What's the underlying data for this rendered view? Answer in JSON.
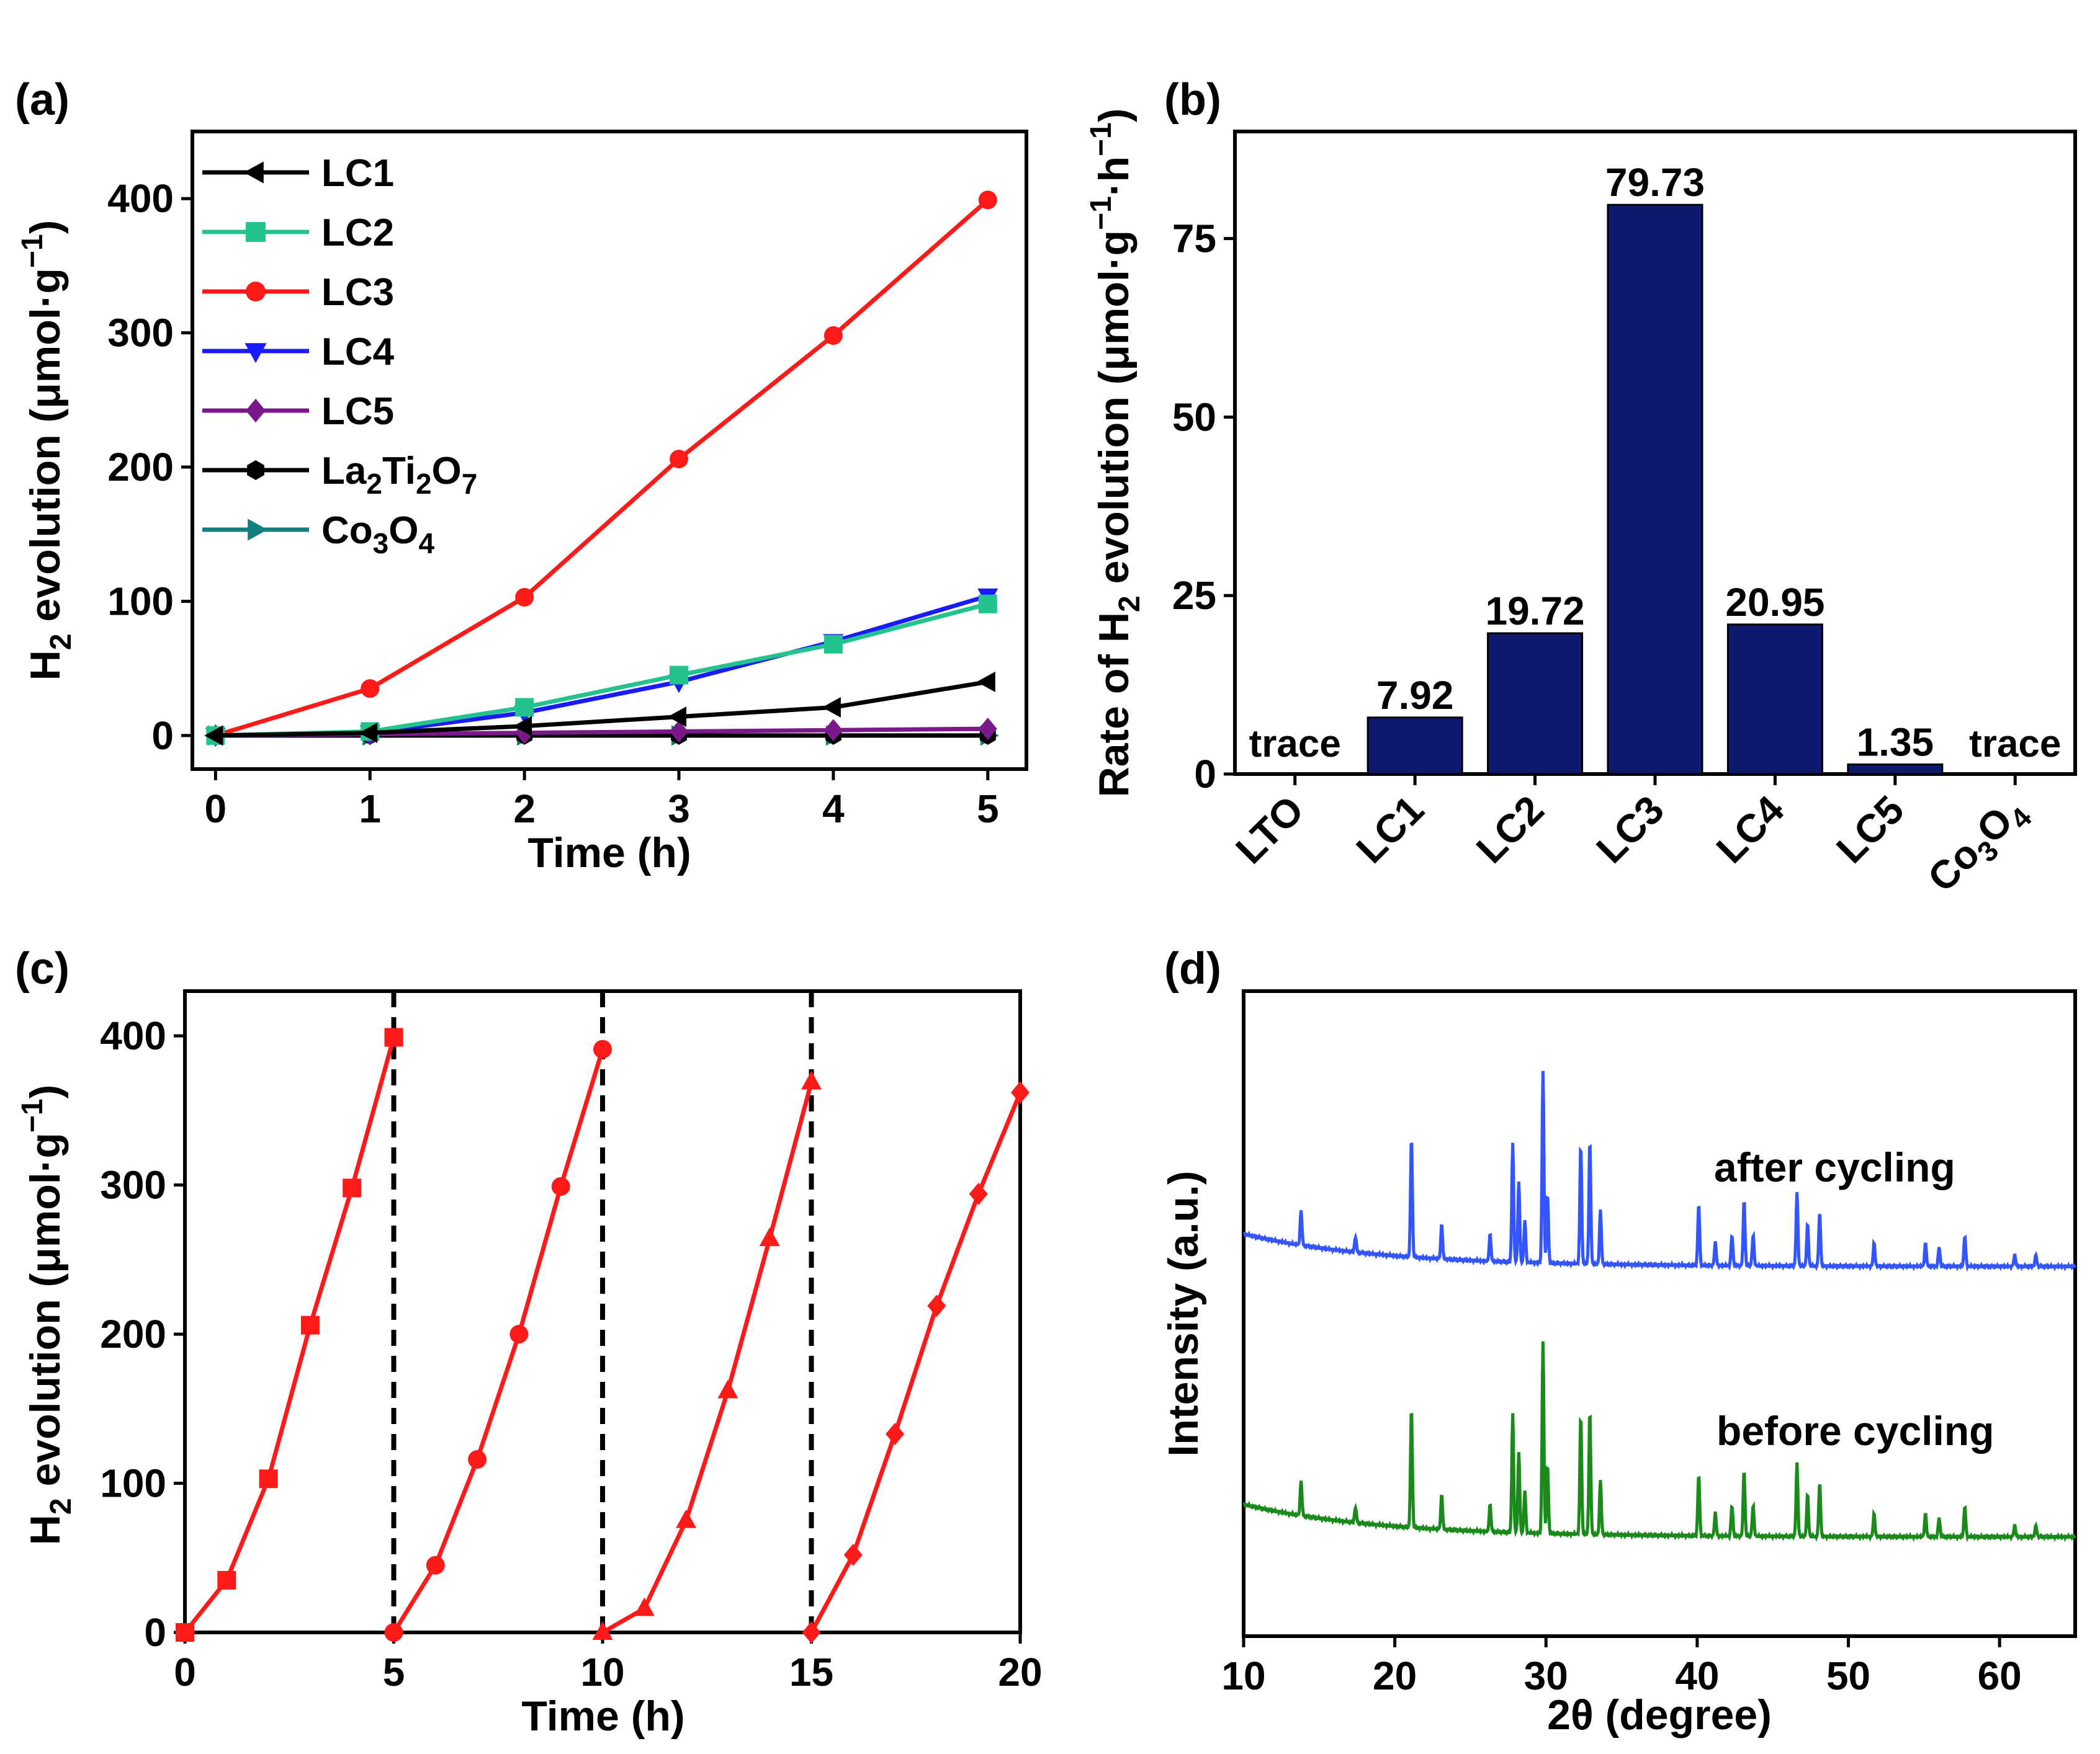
{
  "colors": {
    "LC1": "#000000",
    "LC2": "#22c38e",
    "LC3": "#ff1a1a",
    "LC4": "#1a1aff",
    "LC5": "#7a1a8a",
    "La2Ti2O7": "#000000",
    "Co3O4": "#0f7f7f",
    "bar": "#0d1a6e",
    "cycle": "#ff1a1a",
    "after": "#3355ff",
    "before": "#1a8a1a"
  },
  "chart_data": [
    {
      "type": "line",
      "panel": "(a)",
      "xlabel": "Time (h)",
      "ylabel": {
        "pre": "H",
        "sub": "2",
        "post": " evolution (μmol·g",
        "sup": "−1",
        "end": ")"
      },
      "xlim": [
        -0.15,
        5.25
      ],
      "ylim": [
        -25,
        450
      ],
      "xticks": [
        0,
        1,
        2,
        3,
        4,
        5
      ],
      "yticks": [
        0,
        100,
        200,
        300,
        400
      ],
      "x": [
        0,
        1,
        2,
        3,
        4,
        5
      ],
      "legend_position": "top-left",
      "series": [
        {
          "name": "LC1",
          "label": "LC1",
          "marker": "triangle-left",
          "values": [
            0,
            2,
            7,
            14,
            21,
            40
          ]
        },
        {
          "name": "LC2",
          "label": "LC2",
          "marker": "square",
          "values": [
            0,
            3,
            21,
            45,
            68,
            98
          ]
        },
        {
          "name": "LC3",
          "label": "LC3",
          "marker": "circle",
          "values": [
            0,
            35,
            103,
            206,
            298,
            399
          ]
        },
        {
          "name": "LC4",
          "label": "LC4",
          "marker": "triangle-down",
          "values": [
            0,
            2,
            17,
            40,
            70,
            104
          ]
        },
        {
          "name": "LC5",
          "label": "LC5",
          "marker": "diamond",
          "values": [
            0,
            1,
            2,
            3,
            4,
            5
          ]
        },
        {
          "name": "La2Ti2O7",
          "label": {
            "parts": [
              "La",
              "2",
              "Ti",
              "2",
              "O",
              "7"
            ]
          },
          "marker": "hexagon",
          "values": [
            0,
            0,
            0,
            0,
            0,
            0
          ]
        },
        {
          "name": "Co3O4",
          "label": {
            "parts": [
              "Co",
              "3",
              "O",
              "4"
            ]
          },
          "marker": "triangle-right",
          "values": [
            0,
            0,
            0,
            0,
            0,
            0
          ]
        }
      ]
    },
    {
      "type": "bar",
      "panel": "(b)",
      "categories": [
        "LTO",
        "LC1",
        "LC2",
        "LC3",
        "LC4",
        "LC5",
        "Co3O4"
      ],
      "category_labels": [
        "LTO",
        "LC1",
        "LC2",
        "LC3",
        "LC4",
        "LC5",
        {
          "parts": [
            "Co",
            "3",
            "O",
            "4"
          ]
        }
      ],
      "values": [
        0,
        7.92,
        19.72,
        79.73,
        20.95,
        1.35,
        0
      ],
      "value_labels": [
        "trace",
        "7.92",
        "19.72",
        "79.73",
        "20.95",
        "1.35",
        "trace"
      ],
      "ylabel": {
        "pre": "Rate of H",
        "sub": "2",
        "mid": " evolution (μmol·g",
        "sup1": "−1",
        "dot": "·h",
        "sup2": "−1",
        "end": ")"
      },
      "ylim": [
        0,
        90
      ],
      "yticks": [
        0,
        25,
        50,
        75
      ]
    },
    {
      "type": "line",
      "panel": "(c)",
      "xlabel": "Time (h)",
      "ylabel": {
        "pre": "H",
        "sub": "2",
        "post": " evolution (μmol·g",
        "sup": "−1",
        "end": ")"
      },
      "xlim": [
        0,
        20
      ],
      "ylim": [
        0,
        430
      ],
      "xticks": [
        0,
        5,
        10,
        15,
        20
      ],
      "yticks": [
        0,
        100,
        200,
        300,
        400
      ],
      "dividers": [
        5,
        10,
        15
      ],
      "cycles": [
        {
          "marker": "square",
          "x": [
            0,
            1,
            2,
            3,
            4,
            5
          ],
          "values": [
            0,
            35,
            103,
            206,
            298,
            399
          ]
        },
        {
          "marker": "circle",
          "x": [
            5,
            6,
            7,
            8,
            9,
            10
          ],
          "values": [
            0,
            45,
            116,
            200,
            299,
            391
          ]
        },
        {
          "marker": "triangle",
          "x": [
            10,
            11,
            12,
            13,
            14,
            15
          ],
          "values": [
            0,
            16,
            75,
            162,
            264,
            369
          ]
        },
        {
          "marker": "diamond",
          "x": [
            15,
            16,
            17,
            18,
            19,
            20
          ],
          "values": [
            0,
            52,
            133,
            219,
            294,
            362
          ]
        }
      ]
    },
    {
      "type": "line",
      "panel": "(d)",
      "xlabel": "2θ (degree)",
      "ylabel": "Intensity (a.u.)",
      "xlim": [
        10,
        65
      ],
      "xticks": [
        10,
        20,
        30,
        40,
        50,
        60
      ],
      "yaxis_values": "arbitrary units (no ticks)",
      "peak_positions_deg": [
        13.8,
        17.4,
        21.1,
        23.1,
        26.3,
        27.8,
        28.2,
        28.6,
        29.8,
        30.1,
        32.3,
        32.9,
        33.6,
        40.1,
        41.2,
        42.3,
        43.1,
        43.7,
        46.6,
        47.3,
        48.1,
        51.7,
        55.1,
        56.0,
        57.7,
        61.0,
        62.4
      ],
      "series": [
        {
          "name": "after cycling",
          "label": "after cycling"
        },
        {
          "name": "before cycling",
          "label": "before cycling"
        }
      ]
    }
  ]
}
